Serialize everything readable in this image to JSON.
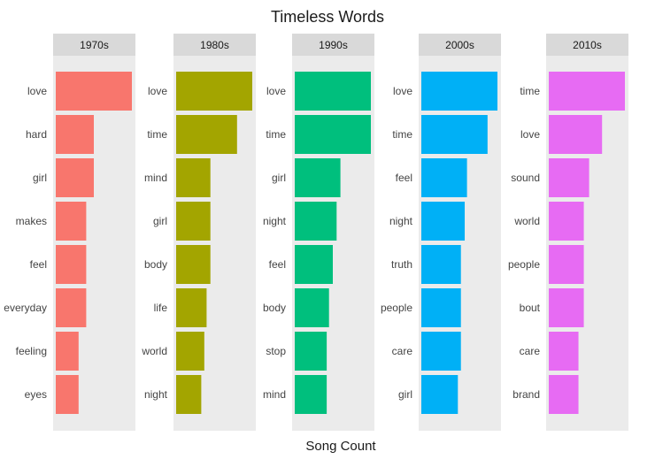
{
  "chart_data": {
    "type": "bar",
    "orientation": "horizontal",
    "title": "Timeless Words",
    "xlabel": "Song Count",
    "ylabel": "",
    "grid": false,
    "legend": "none",
    "facets": [
      {
        "name": "1970s",
        "color": "#F8766D",
        "categories": [
          "love",
          "hard",
          "girl",
          "makes",
          "feel",
          "everyday",
          "feeling",
          "eyes"
        ],
        "values": [
          10,
          5,
          5,
          4,
          4,
          4,
          3,
          3
        ]
      },
      {
        "name": "1980s",
        "color": "#A3A500",
        "categories": [
          "love",
          "time",
          "mind",
          "girl",
          "body",
          "life",
          "world",
          "night"
        ],
        "values": [
          10,
          8,
          4.5,
          4.5,
          4.5,
          4,
          3.7,
          3.3
        ]
      },
      {
        "name": "1990s",
        "color": "#00BF7D",
        "categories": [
          "love",
          "time",
          "girl",
          "night",
          "feel",
          "body",
          "stop",
          "mind"
        ],
        "values": [
          10,
          10,
          6,
          5.5,
          5,
          4.5,
          4.2,
          4.2
        ]
      },
      {
        "name": "2000s",
        "color": "#00B0F6",
        "categories": [
          "love",
          "time",
          "feel",
          "night",
          "truth",
          "people",
          "care",
          "girl"
        ],
        "values": [
          10,
          8.7,
          6,
          5.7,
          5.2,
          5.2,
          5.2,
          4.8
        ]
      },
      {
        "name": "2010s",
        "color": "#E76BF3",
        "categories": [
          "time",
          "love",
          "sound",
          "world",
          "people",
          "bout",
          "care",
          "brand"
        ],
        "values": [
          10,
          7,
          5.3,
          4.6,
          4.6,
          4.6,
          3.9,
          3.9
        ]
      }
    ]
  }
}
